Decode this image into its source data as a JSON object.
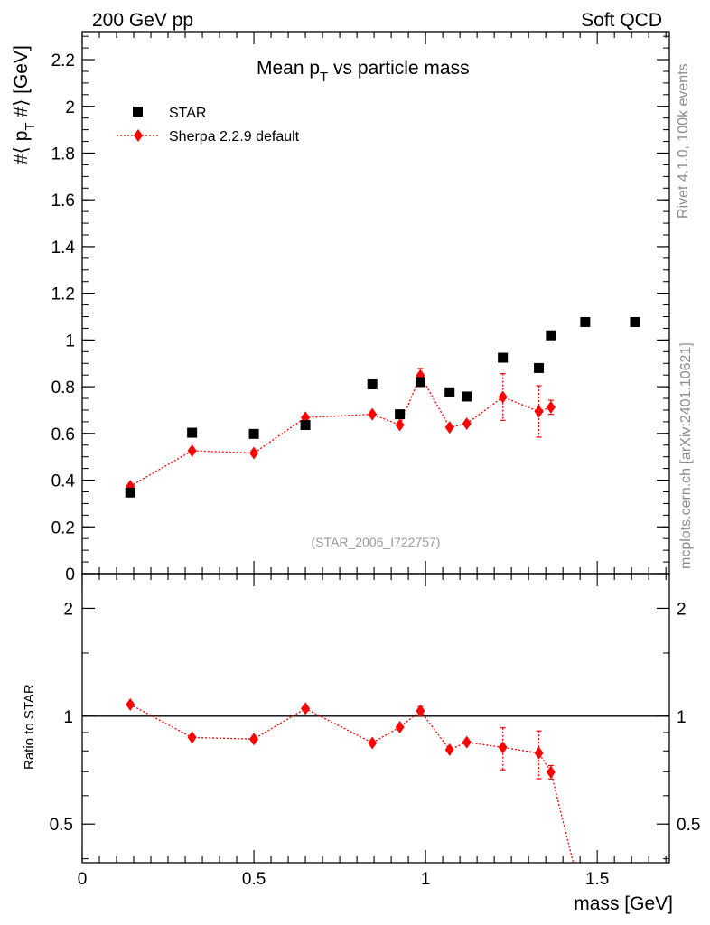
{
  "header": {
    "left": "200 GeV pp",
    "right": "Soft QCD"
  },
  "side": {
    "rivet": "Rivet 4.1.0,  100k events",
    "mcplots": "mcplots.cern.ch [arXiv:2401.10621]"
  },
  "chart_data": [
    {
      "type": "scatter",
      "title_main": "Mean p",
      "title_sub": "T",
      "title_rest": " vs particle mass",
      "ylabel_pre": "#⟨ p",
      "ylabel_sub": "T",
      "ylabel_post": " #⟩ [GeV]",
      "ylim": [
        0,
        2.32
      ],
      "xlim": [
        0,
        1.71
      ],
      "yticks": [
        0,
        0.2,
        0.4,
        0.6,
        0.8,
        1,
        1.2,
        1.4,
        1.6,
        1.8,
        2,
        2.2
      ],
      "ytick_labels": [
        "0",
        "0.2",
        "0.4",
        "0.6",
        "0.8",
        "1",
        "1.2",
        "1.4",
        "1.6",
        "1.8",
        "2",
        "2.2"
      ],
      "watermark": "(STAR_2006_I722757)",
      "legend": {
        "position": "top-left",
        "entries": [
          "STAR",
          "Sherpa 2.2.9 default"
        ]
      },
      "series": [
        {
          "name": "STAR",
          "marker": "square",
          "color": "#000000",
          "x": [
            0.14,
            0.32,
            0.5,
            0.65,
            0.845,
            0.925,
            0.985,
            1.07,
            1.12,
            1.225,
            1.33,
            1.365,
            1.465,
            1.61
          ],
          "y": [
            0.347,
            0.603,
            0.598,
            0.636,
            0.81,
            0.682,
            0.82,
            0.776,
            0.758,
            0.924,
            0.88,
            1.02,
            1.077,
            1.077
          ]
        },
        {
          "name": "Sherpa 2.2.9 default",
          "marker": "diamond",
          "color": "#ff0000",
          "x": [
            0.14,
            0.32,
            0.5,
            0.65,
            0.845,
            0.925,
            0.985,
            1.07,
            1.12,
            1.225,
            1.33,
            1.365
          ],
          "y": [
            0.374,
            0.526,
            0.516,
            0.668,
            0.682,
            0.636,
            0.848,
            0.626,
            0.642,
            0.756,
            0.694,
            0.712
          ],
          "err": [
            0.006,
            0.006,
            0.006,
            0.006,
            0.008,
            0.008,
            0.03,
            0.008,
            0.01,
            0.1,
            0.11,
            0.03
          ]
        }
      ]
    },
    {
      "type": "scatter",
      "ylabel": "Ratio to STAR",
      "xlabel": "mass [GeV]",
      "xlim": [
        0,
        1.71
      ],
      "ylim": [
        0.39,
        2.5
      ],
      "yscale": "log",
      "yticks": [
        0.5,
        1,
        2
      ],
      "ytick_labels": [
        "0.5",
        "1",
        "2"
      ],
      "xticks": [
        0,
        0.5,
        1,
        1.5
      ],
      "xtick_labels": [
        "0",
        "0.5",
        "1",
        "1.5"
      ],
      "reference_line": 1,
      "series": [
        {
          "name": "Sherpa 2.2.9 default",
          "marker": "diamond",
          "color": "#ff0000",
          "x": [
            0.14,
            0.32,
            0.5,
            0.65,
            0.845,
            0.925,
            0.985,
            1.07,
            1.12,
            1.225,
            1.33,
            1.365
          ],
          "y": [
            1.078,
            0.872,
            0.863,
            1.05,
            0.842,
            0.932,
            1.034,
            0.806,
            0.846,
            0.818,
            0.789,
            0.698
          ],
          "err": [
            0.008,
            0.008,
            0.008,
            0.008,
            0.01,
            0.012,
            0.03,
            0.01,
            0.012,
            0.11,
            0.12,
            0.03
          ],
          "line_tail": {
            "x": 1.43,
            "y": 0.39
          }
        }
      ]
    }
  ]
}
